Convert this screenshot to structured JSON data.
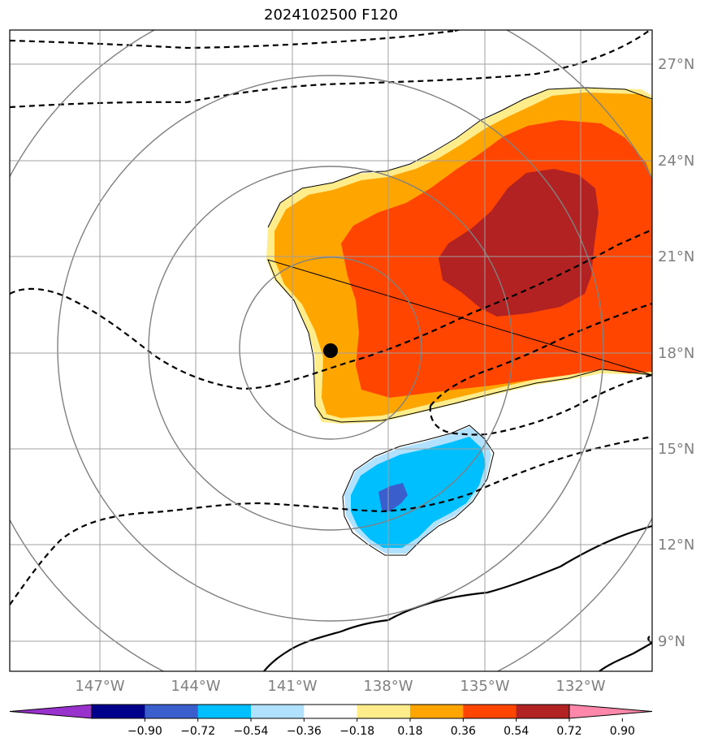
{
  "title": "2024102500 F120",
  "colors": {
    "grid": "#a0a0a0",
    "range_rings": "#808080",
    "contour_line": "#000000",
    "storm_center": "#000000"
  },
  "map": {
    "lon_ticks": [
      "147°W",
      "144°W",
      "141°W",
      "138°W",
      "135°W",
      "132°W"
    ],
    "lat_ticks": [
      "27°N",
      "24°N",
      "21°N",
      "18°N",
      "15°N",
      "12°N",
      "9°N"
    ],
    "storm_center": {
      "lon": "139.6°W",
      "lat": "18.1°N"
    }
  },
  "colorbar": {
    "ticks": [
      "−0.90",
      "−0.72",
      "−0.54",
      "−0.36",
      "−0.18",
      "0.18",
      "0.36",
      "0.54",
      "0.72",
      "0.90"
    ],
    "colors": [
      "#9932cc",
      "#00008b",
      "#3a5fcd",
      "#00bfff",
      "#b0e2ff",
      "#ffffff",
      "#ffec8b",
      "#ffa500",
      "#ff4500",
      "#b22222",
      "#ff88aa"
    ]
  }
}
